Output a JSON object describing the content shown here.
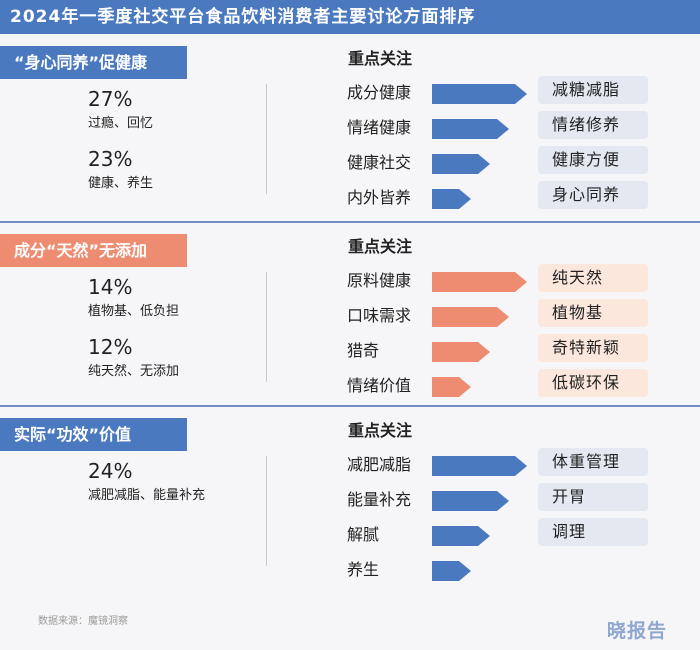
{
  "title": "2024年一季度社交平台食品饮料消费者主要讨论方面排序",
  "focus_label": "重点关注",
  "sections": [
    {
      "tag": "“身心同养”促健康",
      "color": "blue",
      "stats": [
        {
          "pct": "27%",
          "desc": "过瘾、回忆"
        },
        {
          "pct": "23%",
          "desc": "健康、养生"
        }
      ],
      "rows": [
        {
          "label": "成分健康",
          "rank": 4
        },
        {
          "label": "情绪健康",
          "rank": 3
        },
        {
          "label": "健康社交",
          "rank": 2
        },
        {
          "label": "内外皆养",
          "rank": 1
        }
      ],
      "pills": [
        "减糖减脂",
        "情绪修养",
        "健康方便",
        "身心同养"
      ]
    },
    {
      "tag": "成分“天然”无添加",
      "color": "orange",
      "stats": [
        {
          "pct": "14%",
          "desc": "植物基、低负担"
        },
        {
          "pct": "12%",
          "desc": "纯天然、无添加"
        }
      ],
      "rows": [
        {
          "label": "原料健康",
          "rank": 4
        },
        {
          "label": "口味需求",
          "rank": 3
        },
        {
          "label": "猎奇",
          "rank": 2
        },
        {
          "label": "情绪价值",
          "rank": 1
        }
      ],
      "pills": [
        "纯天然",
        "植物基",
        "奇特新颖",
        "低碳环保"
      ]
    },
    {
      "tag": "实际“功效”价值",
      "color": "blue",
      "stats": [
        {
          "pct": "24%",
          "desc": "减肥减脂、能量补充"
        }
      ],
      "rows": [
        {
          "label": "减肥减脂",
          "rank": 4
        },
        {
          "label": "能量补充",
          "rank": 3
        },
        {
          "label": "解腻",
          "rank": 2
        },
        {
          "label": "养生",
          "rank": 1
        }
      ],
      "pills": [
        "体重管理",
        "开胃",
        "调理"
      ]
    }
  ],
  "colors": {
    "blue": "#4a79c0",
    "orange": "#ee8c72"
  },
  "source": "数据来源：魔镜洞察",
  "logo": "晓报告"
}
